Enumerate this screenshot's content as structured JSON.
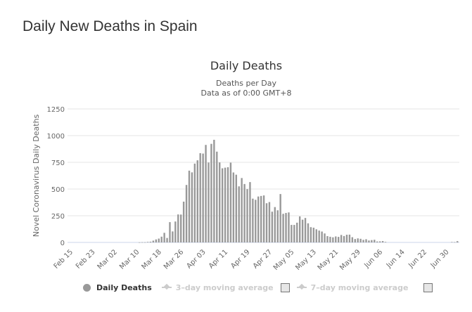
{
  "page": {
    "title": "Daily New Deaths in Spain"
  },
  "legend": {
    "items": [
      {
        "label": "Daily Deaths",
        "active": true
      },
      {
        "label": "3–day moving average",
        "active": false,
        "checkbox": false
      },
      {
        "label": "7–day moving average",
        "active": false,
        "checkbox": false
      }
    ]
  },
  "colors": {
    "bar": "#999999",
    "grid": "#e6e6e6",
    "axis_text": "#666666"
  },
  "chart_data": {
    "type": "bar",
    "title": "Daily Deaths",
    "subtitle": [
      "Deaths per Day",
      "Data as of 0:00 GMT+8"
    ],
    "xlabel": "",
    "ylabel": "Novel Coronavirus Daily Deaths",
    "ylim": [
      0,
      1250
    ],
    "yticks": [
      0,
      250,
      500,
      750,
      1000,
      1250
    ],
    "grid": true,
    "legend_position": "bottom",
    "start_date": "Feb 15",
    "xtick_labels": [
      "Feb 15",
      "Feb 23",
      "Mar 02",
      "Mar 10",
      "Mar 18",
      "Mar 26",
      "Apr 03",
      "Apr 11",
      "Apr 19",
      "Apr 27",
      "May 05",
      "May 13",
      "May 21",
      "May 29",
      "Jun 06",
      "Jun 14",
      "Jun 22",
      "Jun 30"
    ],
    "xtick_every_days": 8,
    "series": [
      {
        "name": "Daily Deaths",
        "values": [
          0,
          0,
          0,
          0,
          0,
          0,
          0,
          0,
          0,
          0,
          0,
          0,
          0,
          0,
          0,
          0,
          0,
          0,
          0,
          0,
          0,
          0,
          0,
          0,
          0,
          1,
          2,
          2,
          5,
          7,
          17,
          28,
          36,
          54,
          90,
          42,
          190,
          103,
          196,
          262,
          261,
          382,
          538,
          672,
          656,
          738,
          769,
          836,
          832,
          913,
          748,
          923,
          961,
          850,
          749,
          694,
          700,
          704,
          747,
          655,
          634,
          525,
          603,
          547,
          499,
          565,
          410,
          399,
          430,
          435,
          440,
          367,
          378,
          288,
          331,
          301,
          453,
          268,
          276,
          281,
          164,
          164,
          185,
          244,
          213,
          229,
          179,
          143,
          138,
          123,
          111,
          102,
          84,
          59,
          53,
          48,
          56,
          52,
          70,
          60,
          72,
          73,
          49,
          32,
          38,
          34,
          24,
          30,
          18,
          22,
          25,
          9,
          10,
          13,
          5,
          0,
          0,
          0,
          0,
          0,
          0,
          0,
          0,
          0,
          0,
          0,
          0,
          0,
          0,
          0,
          0,
          0,
          0,
          0,
          0,
          0,
          0,
          0,
          4,
          3,
          12
        ]
      },
      {
        "name": "3–day moving average",
        "visible": false
      },
      {
        "name": "7–day moving average",
        "visible": false
      }
    ]
  }
}
